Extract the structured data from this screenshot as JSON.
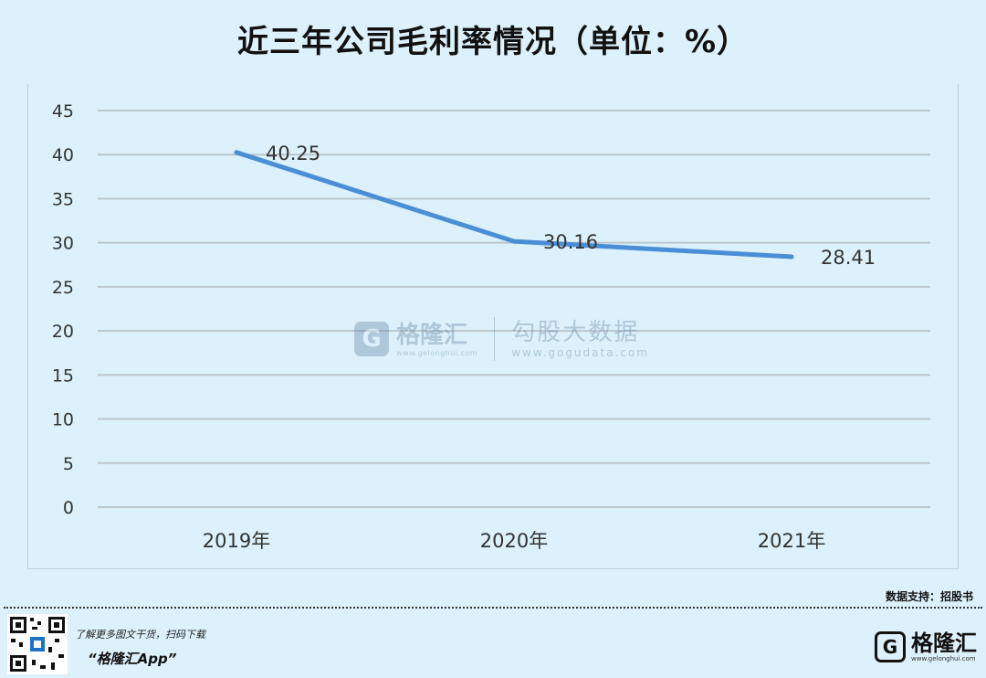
{
  "title": "近三年公司毛利率情况（单位：%）",
  "watermark": {
    "brand": "格隆汇",
    "brand_url": "www.gelonghui.com",
    "gogu": "勾股大数据",
    "gogu_url": "www.gogudata.com"
  },
  "source": "数据支持：招股书",
  "footer": {
    "slogan": "了解更多图文干货，扫码下载",
    "app": "“格隆汇App”",
    "logo_text": "格隆汇",
    "logo_url": "www.gelonghui.com"
  },
  "colors": {
    "line": "#4a8fd6",
    "grid": "#bcc6cc",
    "background": "#dcf1fb"
  },
  "chart_data": {
    "type": "line",
    "categories": [
      "2019年",
      "2020年",
      "2021年"
    ],
    "series": [
      {
        "values": [
          40.25,
          30.16,
          28.41
        ]
      }
    ],
    "data_labels": [
      "40.25",
      "30.16",
      "28.41"
    ],
    "ylim": [
      0,
      45
    ],
    "yticks": [
      0,
      5,
      10,
      15,
      20,
      25,
      30,
      35,
      40,
      45
    ],
    "grid": true
  }
}
